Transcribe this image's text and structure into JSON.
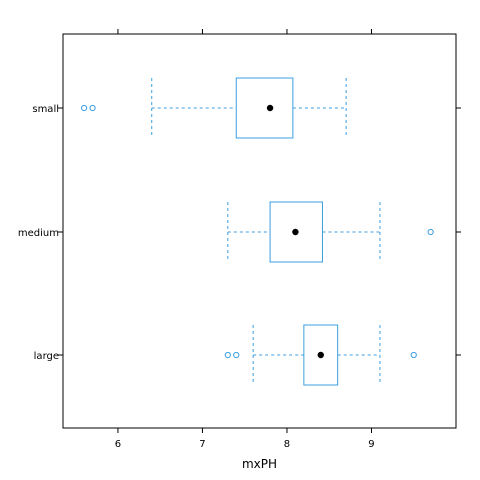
{
  "chart_data": {
    "type": "boxplot",
    "orientation": "horizontal",
    "title": "",
    "xlabel": "mxPH",
    "ylabel": "",
    "xlim": [
      5.35,
      10.0
    ],
    "x_ticks": [
      6,
      7,
      8,
      9
    ],
    "x_tick_labels": [
      "6",
      "7",
      "8",
      "9"
    ],
    "categories": [
      "small",
      "medium",
      "large"
    ],
    "grid": false,
    "legend": "none",
    "colors": {
      "box": "#3c9ee0",
      "median_dot": "#000000",
      "frame": "#000000"
    },
    "series": [
      {
        "category": "small",
        "whisker_low": 6.4,
        "q1": 7.4,
        "median": 7.8,
        "q3": 8.07,
        "whisker_high": 8.7,
        "outliers": [
          5.6,
          5.7
        ]
      },
      {
        "category": "medium",
        "whisker_low": 7.3,
        "q1": 7.8,
        "median": 8.1,
        "q3": 8.42,
        "whisker_high": 9.1,
        "outliers": [
          9.7
        ]
      },
      {
        "category": "large",
        "whisker_low": 7.6,
        "q1": 8.2,
        "median": 8.4,
        "q3": 8.6,
        "whisker_high": 9.1,
        "outliers": [
          7.3,
          7.4,
          9.5
        ]
      }
    ]
  }
}
